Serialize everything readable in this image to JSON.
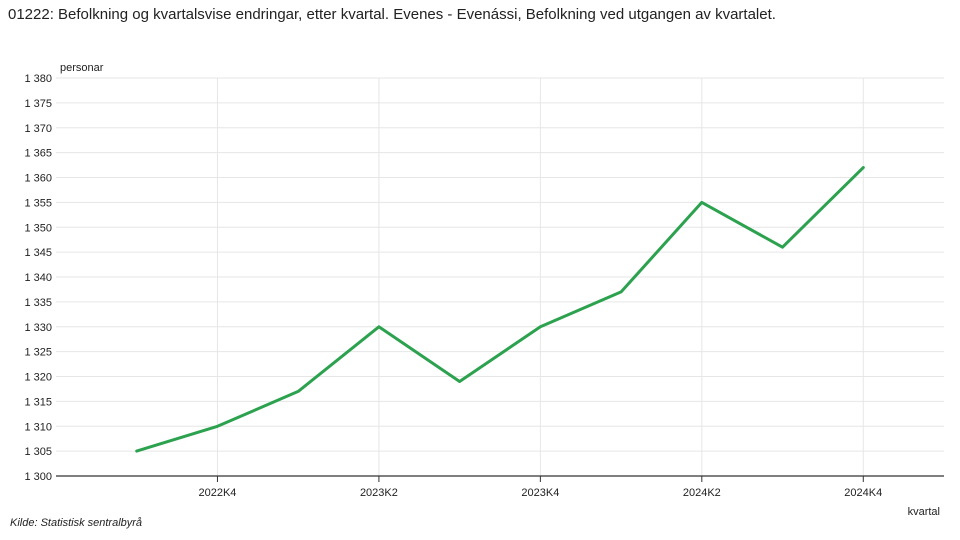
{
  "title": "01222: Befolkning og kvartalsvise endringar, etter kvartal. Evenes - Evenássi, Befolkning ved utgangen av kvartalet.",
  "source": "Kilde:  Statistisk sentralbyrå",
  "colors": {
    "line": "#2ca24f",
    "grid": "#e6e6e6",
    "axis": "#333333"
  },
  "chart_data": {
    "type": "line",
    "title": "01222: Befolkning og kvartalsvise endringar, etter kvartal. Evenes - Evenássi, Befolkning ved utgangen av kvartalet.",
    "xlabel": "kvartal",
    "ylabel": "personar",
    "categories": [
      "2022K3",
      "2022K4",
      "2023K1",
      "2023K2",
      "2023K3",
      "2023K4",
      "2024K1",
      "2024K2",
      "2024K3",
      "2024K4"
    ],
    "x_tick_labels": [
      "2022K4",
      "2023K2",
      "2023K4",
      "2024K2",
      "2024K4"
    ],
    "y_tick_labels": [
      "1 300",
      "1 305",
      "1 310",
      "1 315",
      "1 320",
      "1 325",
      "1 330",
      "1 335",
      "1 340",
      "1 345",
      "1 350",
      "1 355",
      "1 360",
      "1 365",
      "1 370",
      "1 375",
      "1 380"
    ],
    "series": [
      {
        "values": [
          1305,
          1310,
          1317,
          1330,
          1319,
          1330,
          1337,
          1355,
          1346,
          1362
        ]
      }
    ],
    "ylim": [
      1300,
      1380
    ],
    "grid": true,
    "legend": "none"
  }
}
